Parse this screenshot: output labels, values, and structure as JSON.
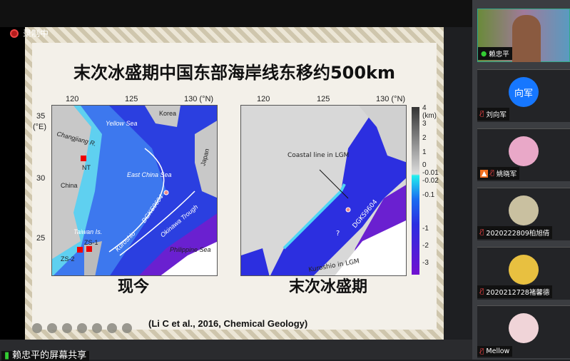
{
  "recording": {
    "label": "录制中"
  },
  "slide": {
    "title": "末次冰盛期中国东部海岸线东移约500km",
    "map_left": {
      "caption": "现今",
      "lon_ticks": [
        "120",
        "125",
        "130 (°N)"
      ],
      "lat_ticks": [
        "35",
        "(°E)",
        "30",
        "25"
      ],
      "labels": [
        "Yellow Sea",
        "Korea",
        "Changjiang R.",
        "NT",
        "China",
        "East China Sea",
        "DGKS9604",
        "Okinawa Trough",
        "Kuroshio",
        "Taiwan Is.",
        "ZS-1",
        "ZS-2",
        "Philippine Sea",
        "Japan"
      ]
    },
    "map_right": {
      "caption": "末次冰盛期",
      "lon_ticks": [
        "120",
        "125",
        "130 (°N)"
      ],
      "labels": [
        "Coastal line in LGM",
        "DGKS9604",
        "?",
        "Kuroshio in LGM"
      ]
    },
    "colorbar": {
      "unit": "(km)",
      "ticks": [
        "4",
        "3",
        "2",
        "1",
        "0",
        "-0.01",
        "-0.02",
        "-0.1",
        "-1",
        "-2",
        "-3"
      ]
    },
    "citation": "(Li C et al., 2016, Chemical Geology)",
    "toolbar": [
      "prev-icon",
      "next-icon",
      "pen-icon",
      "focus-icon",
      "screen-icon",
      "caption-icon",
      "more-icon"
    ]
  },
  "share_label": "赖忠平的屏幕共享",
  "participants": [
    {
      "name": "赖忠平",
      "mic": "on",
      "video": true
    },
    {
      "name": "刘向军",
      "mic": "muted",
      "avatar_text": "向军",
      "avatar_color": "#1677ff"
    },
    {
      "name": "姚晓军",
      "mic": "muted",
      "host_badge": true
    },
    {
      "name": "2020222809柏旭倩",
      "mic": "muted"
    },
    {
      "name": "2020212728褚馨德",
      "mic": "muted"
    },
    {
      "name": "Mellow",
      "mic": "muted"
    }
  ]
}
